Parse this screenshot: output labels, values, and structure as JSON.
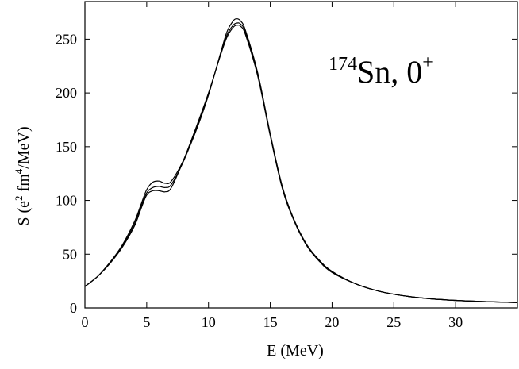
{
  "chart_data": {
    "type": "line",
    "title": "",
    "xlabel": "E (MeV)",
    "ylabel": {
      "prefix": "S (e",
      "exp1": "2",
      "mid": " fm",
      "exp2": "4",
      "suffix": "/MeV)"
    },
    "xlim": [
      0,
      35
    ],
    "ylim": [
      0,
      285
    ],
    "x_ticks": [
      0,
      5,
      10,
      15,
      20,
      25,
      30
    ],
    "y_ticks": [
      0,
      50,
      100,
      150,
      200,
      250
    ],
    "grid": false,
    "legend": "none",
    "annotation": {
      "mass_number": "174",
      "text": "Sn,  0",
      "superscript": "+"
    },
    "series": [
      {
        "x": [
          0,
          1,
          2,
          3,
          4,
          4.5,
          5,
          5.5,
          6,
          6.5,
          7,
          8,
          9,
          10,
          11,
          11.5,
          12,
          12.3,
          12.6,
          13,
          14,
          15,
          16,
          17,
          18,
          19,
          20,
          22,
          24,
          26,
          28,
          30,
          32,
          35
        ],
        "values": [
          20,
          29,
          42,
          58,
          80,
          95,
          110,
          117,
          118,
          116,
          118,
          138,
          165,
          198,
          238,
          257,
          267,
          269,
          267,
          258,
          218,
          162,
          112,
          80,
          58,
          44,
          34,
          22,
          15,
          11,
          8.5,
          7,
          6,
          5
        ]
      },
      {
        "x": [
          0,
          1,
          2,
          3,
          4,
          4.5,
          5,
          5.5,
          6,
          6.5,
          7,
          8,
          9,
          10,
          11,
          11.5,
          12,
          12.3,
          12.6,
          13,
          14,
          15,
          16,
          17,
          18,
          19,
          20,
          22,
          24,
          26,
          28,
          30,
          32,
          35
        ],
        "values": [
          20,
          29,
          41,
          56,
          76,
          91,
          105,
          109,
          109,
          108,
          112,
          138,
          168,
          200,
          236,
          252,
          261,
          263,
          262,
          254,
          215,
          160,
          110,
          79,
          57,
          43,
          33,
          22,
          15,
          11,
          8.5,
          7,
          6,
          5
        ]
      },
      {
        "x": [
          0,
          1,
          2,
          3,
          4,
          4.5,
          5,
          5.5,
          6,
          6.5,
          7,
          8,
          9,
          10,
          11,
          11.5,
          12,
          12.3,
          12.6,
          13,
          14,
          15,
          16,
          17,
          18,
          19,
          20,
          22,
          24,
          26,
          28,
          30,
          32,
          35
        ],
        "values": [
          20,
          29,
          42,
          57,
          78,
          93,
          107,
          112,
          113,
          112,
          115,
          137,
          166,
          199,
          237,
          254,
          263,
          265,
          264,
          256,
          217,
          161,
          111,
          80,
          58,
          44,
          34,
          22,
          15,
          11,
          8.5,
          7,
          6,
          5
        ]
      }
    ]
  }
}
